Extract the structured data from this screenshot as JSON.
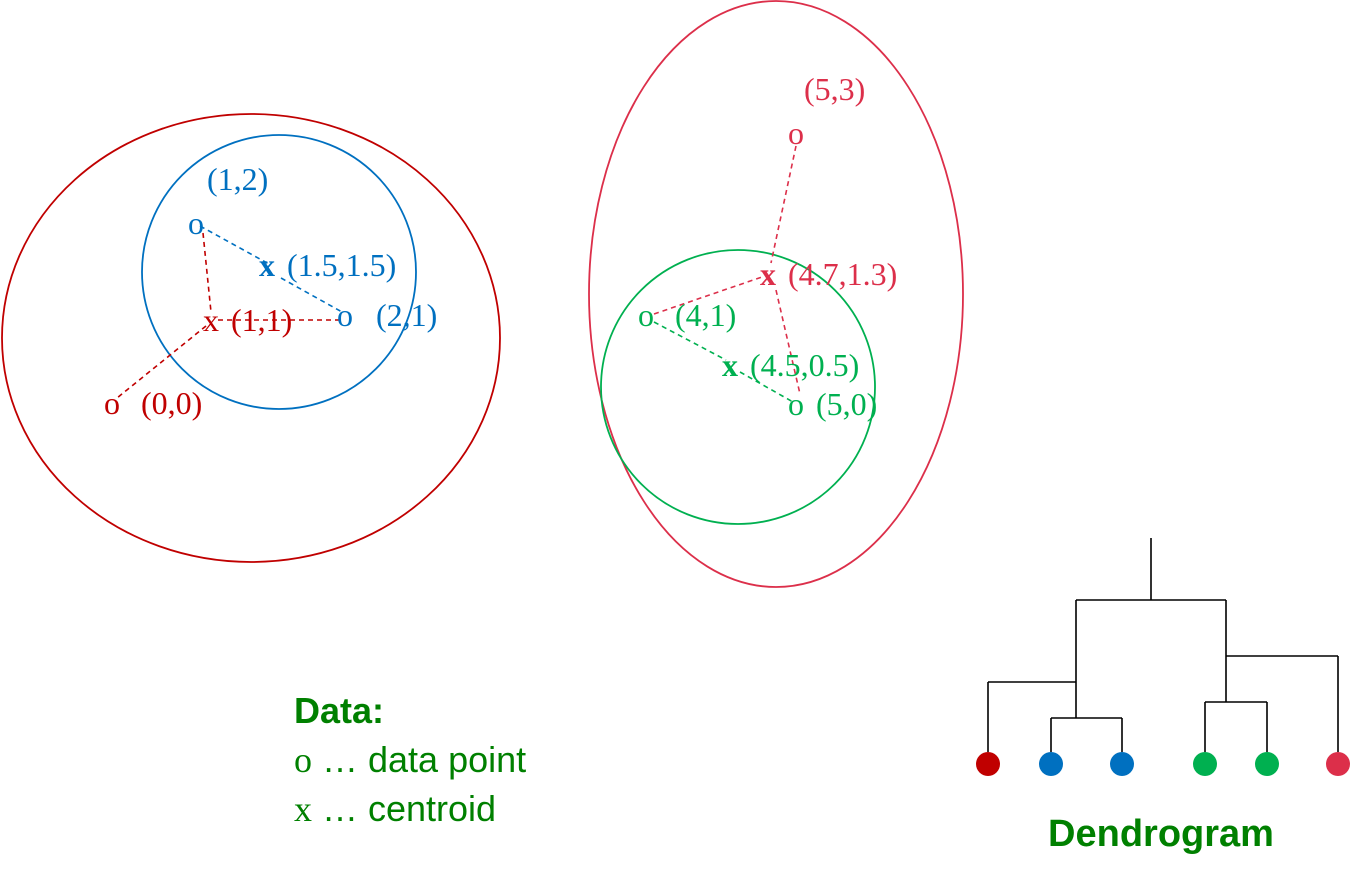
{
  "colors": {
    "dark_red": "#c00000",
    "blue": "#0070c0",
    "green": "#00b050",
    "crimson": "#dc2f4a",
    "legend_green": "#008000",
    "black": "#000000"
  },
  "points": {
    "p00": {
      "marker": "o",
      "label": "(0,0)"
    },
    "p12": {
      "marker": "o",
      "label": "(1,2)"
    },
    "p21": {
      "marker": "o",
      "label": "(2,1)"
    },
    "p41": {
      "marker": "o",
      "label": "(4,1)"
    },
    "p50": {
      "marker": "o",
      "label": "(5,0)"
    },
    "p53": {
      "marker": "o",
      "label": "(5,3)"
    }
  },
  "centroids": {
    "c_blue": {
      "marker": "x",
      "label": "(1.5,1.5)"
    },
    "c_red": {
      "marker": "x",
      "label": "(1,1)"
    },
    "c_green": {
      "marker": "x",
      "label": "(4.5,0.5)"
    },
    "c_crimson": {
      "marker": "x",
      "label": "(4.7,1.3)"
    }
  },
  "legend": {
    "title": "Data:",
    "data_point": {
      "marker": "o",
      "text": " … data point"
    },
    "centroid": {
      "marker": "x",
      "text": " … centroid"
    }
  },
  "dendrogram": {
    "title": "Dendrogram",
    "leaf_colors": [
      "#c00000",
      "#0070c0",
      "#0070c0",
      "#00b050",
      "#00b050",
      "#dc2f4a"
    ]
  }
}
